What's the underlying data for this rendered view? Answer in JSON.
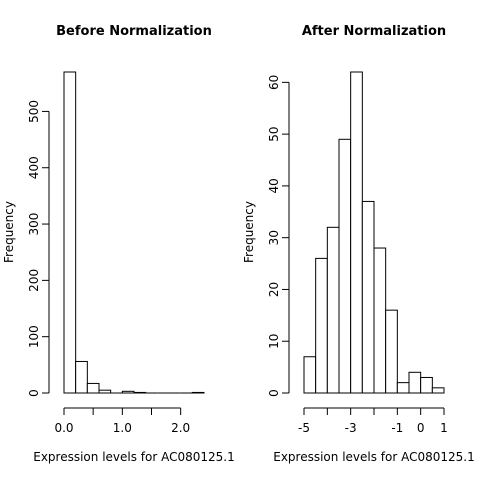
{
  "chart_data": [
    {
      "type": "bar",
      "title": "Before Normalization",
      "xlabel": "Expression levels for AC080125.1",
      "ylabel": "Frequency",
      "xlim": [
        0.0,
        2.4
      ],
      "ylim": [
        0,
        570
      ],
      "x_ticks": [
        0.0,
        0.5,
        1.0,
        1.5,
        2.0
      ],
      "x_tick_labels": [
        "0.0",
        "",
        "1.0",
        "",
        "2.0"
      ],
      "y_ticks": [
        0,
        100,
        200,
        300,
        400,
        500
      ],
      "y_tick_labels": [
        "0",
        "100",
        "200",
        "300",
        "400",
        "500"
      ],
      "bins": [
        {
          "x0": 0.0,
          "x1": 0.2,
          "count": 570
        },
        {
          "x0": 0.2,
          "x1": 0.4,
          "count": 56
        },
        {
          "x0": 0.4,
          "x1": 0.6,
          "count": 17
        },
        {
          "x0": 0.6,
          "x1": 0.8,
          "count": 5
        },
        {
          "x0": 0.8,
          "x1": 1.0,
          "count": 0
        },
        {
          "x0": 1.0,
          "x1": 1.2,
          "count": 3
        },
        {
          "x0": 1.2,
          "x1": 1.4,
          "count": 1
        },
        {
          "x0": 1.4,
          "x1": 1.6,
          "count": 0
        },
        {
          "x0": 1.6,
          "x1": 1.8,
          "count": 0
        },
        {
          "x0": 1.8,
          "x1": 2.0,
          "count": 0
        },
        {
          "x0": 2.0,
          "x1": 2.2,
          "count": 0
        },
        {
          "x0": 2.2,
          "x1": 2.4,
          "count": 1
        }
      ]
    },
    {
      "type": "bar",
      "title": "After Normalization",
      "xlabel": "Expression levels for AC080125.1",
      "ylabel": "Frequency",
      "xlim": [
        -5,
        1
      ],
      "ylim": [
        0,
        62
      ],
      "x_ticks": [
        -5,
        -4,
        -3,
        -2,
        -1,
        0,
        1
      ],
      "x_tick_labels": [
        "-5",
        "",
        "-3",
        "",
        "-1",
        "0",
        "1"
      ],
      "y_ticks": [
        0,
        10,
        20,
        30,
        40,
        50,
        60
      ],
      "y_tick_labels": [
        "0",
        "10",
        "20",
        "30",
        "40",
        "50",
        "60"
      ],
      "bins": [
        {
          "x0": -5.0,
          "x1": -4.5,
          "count": 7
        },
        {
          "x0": -4.5,
          "x1": -4.0,
          "count": 26
        },
        {
          "x0": -4.0,
          "x1": -3.5,
          "count": 32
        },
        {
          "x0": -3.5,
          "x1": -3.0,
          "count": 49
        },
        {
          "x0": -3.0,
          "x1": -2.5,
          "count": 62
        },
        {
          "x0": -2.5,
          "x1": -2.0,
          "count": 37
        },
        {
          "x0": -2.0,
          "x1": -1.5,
          "count": 28
        },
        {
          "x0": -1.5,
          "x1": -1.0,
          "count": 16
        },
        {
          "x0": -1.0,
          "x1": -0.5,
          "count": 2
        },
        {
          "x0": -0.5,
          "x1": 0.0,
          "count": 4
        },
        {
          "x0": 0.0,
          "x1": 0.5,
          "count": 3
        },
        {
          "x0": 0.5,
          "x1": 1.0,
          "count": 1
        }
      ]
    }
  ]
}
